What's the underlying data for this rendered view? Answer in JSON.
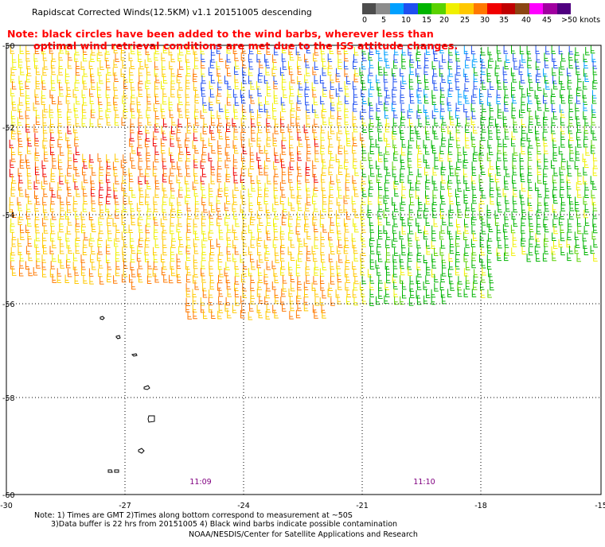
{
  "title": "Rapidscat Corrected Winds(12.5KM) v1.1 20151005 descending",
  "red_note": {
    "line1": "Note: black circles have been added to the wind barbs, wherever less than",
    "line2": "optimal wind retrieval conditions are met due to the ISS attitude changes."
  },
  "legend": {
    "colors": [
      "#4d4d4d",
      "#8c8c8c",
      "#00a0ff",
      "#1f4ff0",
      "#00b400",
      "#5ad200",
      "#f0f000",
      "#ffc800",
      "#ff7800",
      "#f00000",
      "#c00000",
      "#8b4513",
      "#ff00ff",
      "#a000a0",
      "#500080"
    ],
    "labels": [
      "0",
      "5",
      "10",
      "15",
      "20",
      "25",
      "30",
      "35",
      "40",
      "45",
      ">50 knots"
    ]
  },
  "map": {
    "lat_labels": [
      "-50",
      "-52",
      "-54",
      "-56",
      "-58",
      "-60"
    ],
    "lon_labels": [
      "-30",
      "-27",
      "-24",
      "-21",
      "-18",
      "-15"
    ],
    "time_labels": [
      "11:09",
      "11:10"
    ],
    "time_color": "#800080"
  },
  "footer": {
    "line1": "Note: 1) Times are GMT 2)Times along bottom correspond to measurement at ~50S",
    "line2": "3)Data buffer is 22 hrs from 20151005 4) Black wind barbs indicate possible contamination",
    "line3": "NOAA/NESDIS/Center for Satellite Applications and Research"
  }
}
